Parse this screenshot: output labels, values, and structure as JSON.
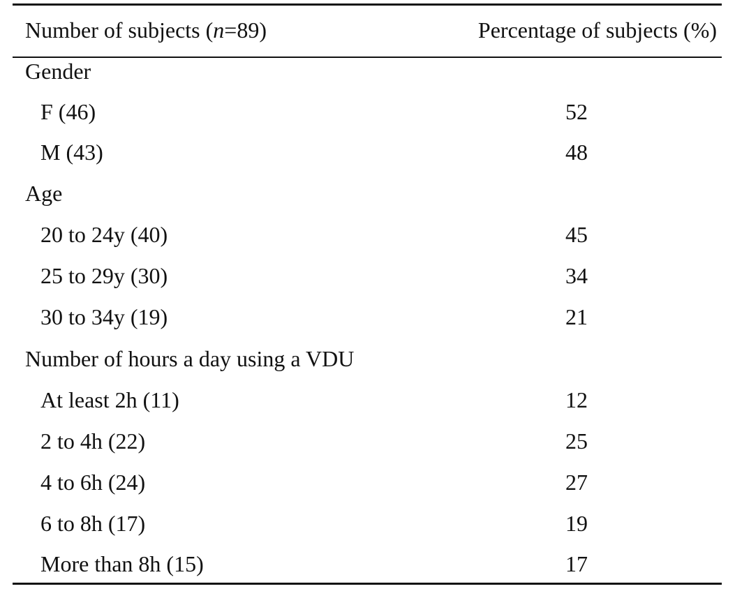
{
  "header": {
    "col1_prefix": "Number of subjects (",
    "col1_n": "n",
    "col1_suffix": "=89)",
    "col2": "Percentage of subjects (%)"
  },
  "groups": [
    {
      "title": "Gender",
      "rows": [
        {
          "label": "F (46)",
          "value": "52"
        },
        {
          "label": "M (43)",
          "value": "48"
        }
      ]
    },
    {
      "title": "Age",
      "rows": [
        {
          "label": "20 to 24y (40)",
          "value": "45"
        },
        {
          "label": "25 to 29y (30)",
          "value": "34"
        },
        {
          "label": "30 to 34y (19)",
          "value": "21"
        }
      ]
    },
    {
      "title": "Number of hours a day using a VDU",
      "rows": [
        {
          "label": "At least 2h (11)",
          "value": "12"
        },
        {
          "label": "2 to 4h (22)",
          "value": "25"
        },
        {
          "label": "4 to 6h (24)",
          "value": "27"
        },
        {
          "label": "6 to 8h (17)",
          "value": "19"
        },
        {
          "label": "More than 8h (15)",
          "value": "17"
        }
      ]
    }
  ]
}
